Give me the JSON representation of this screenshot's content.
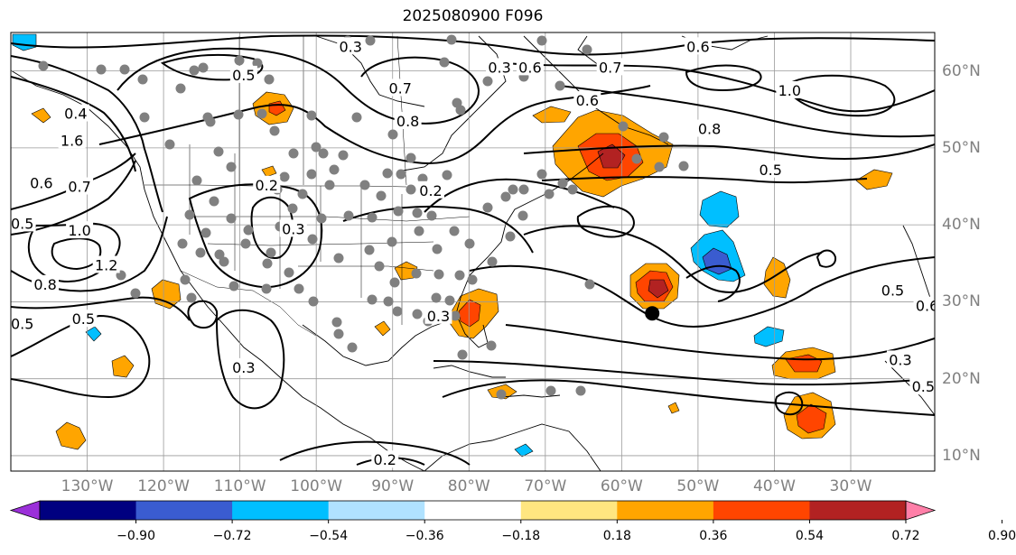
{
  "title": "2025080900 F096",
  "map": {
    "projection": "equirectangular",
    "extent": {
      "lon_min": -140,
      "lon_max": -19,
      "lat_min": 8,
      "lat_max": 65
    },
    "lon_ticks": [
      {
        "value": -130,
        "label": "130°W"
      },
      {
        "value": -120,
        "label": "120°W"
      },
      {
        "value": -110,
        "label": "110°W"
      },
      {
        "value": -100,
        "label": "100°W"
      },
      {
        "value": -90,
        "label": "90°W"
      },
      {
        "value": -80,
        "label": "80°W"
      },
      {
        "value": -70,
        "label": "70°W"
      },
      {
        "value": -60,
        "label": "60°W"
      },
      {
        "value": -50,
        "label": "50°W"
      },
      {
        "value": -40,
        "label": "40°W"
      },
      {
        "value": -30,
        "label": "30°W"
      }
    ],
    "lat_ticks": [
      {
        "value": 60,
        "label": "60°N"
      },
      {
        "value": 50,
        "label": "50°N"
      },
      {
        "value": 40,
        "label": "40°N"
      },
      {
        "value": 30,
        "label": "30°N"
      },
      {
        "value": 20,
        "label": "20°N"
      },
      {
        "value": 10,
        "label": "10°N"
      }
    ],
    "contour_labels": [
      {
        "text": "0.3",
        "lon": -95.5,
        "lat": 63.2
      },
      {
        "text": "0.5",
        "lon": -109.5,
        "lat": 59.5
      },
      {
        "text": "0.7",
        "lon": -89,
        "lat": 57.8
      },
      {
        "text": "0.8",
        "lon": -88,
        "lat": 53.5
      },
      {
        "text": "0.3",
        "lon": -76,
        "lat": 60.5
      },
      {
        "text": "0.6",
        "lon": -72,
        "lat": 60.5
      },
      {
        "text": "0.7",
        "lon": -61.5,
        "lat": 60.5
      },
      {
        "text": "0.6",
        "lon": -64.5,
        "lat": 56.2
      },
      {
        "text": "0.6",
        "lon": -50,
        "lat": 63.2
      },
      {
        "text": "1.0",
        "lon": -38,
        "lat": 57.5
      },
      {
        "text": "0.8",
        "lon": -48.5,
        "lat": 52.5
      },
      {
        "text": "0.5",
        "lon": -40.5,
        "lat": 47.2
      },
      {
        "text": "0.4",
        "lon": -131.5,
        "lat": 54.5
      },
      {
        "text": "1.6",
        "lon": -132,
        "lat": 51
      },
      {
        "text": "0.6",
        "lon": -136,
        "lat": 45.5
      },
      {
        "text": "0.7",
        "lon": -131,
        "lat": 45
      },
      {
        "text": "0.5",
        "lon": -138.5,
        "lat": 40.2
      },
      {
        "text": "1.0",
        "lon": -131,
        "lat": 39.3
      },
      {
        "text": "1.2",
        "lon": -127.5,
        "lat": 34.8
      },
      {
        "text": "0.8",
        "lon": -135.5,
        "lat": 32.3
      },
      {
        "text": "0.5",
        "lon": -138.5,
        "lat": 27.2
      },
      {
        "text": "0.5",
        "lon": -130.5,
        "lat": 27.8
      },
      {
        "text": "0.2",
        "lon": -106.5,
        "lat": 45.2
      },
      {
        "text": "0.3",
        "lon": -103,
        "lat": 39.5
      },
      {
        "text": "0.2",
        "lon": -85,
        "lat": 44.5
      },
      {
        "text": "0.3",
        "lon": -84,
        "lat": 28.2
      },
      {
        "text": "0.3",
        "lon": -109.5,
        "lat": 21.5
      },
      {
        "text": "0.2",
        "lon": -91,
        "lat": 9.5
      },
      {
        "text": "0.5",
        "lon": -24.5,
        "lat": 31.5
      },
      {
        "text": "0.6",
        "lon": -20,
        "lat": 29.5
      },
      {
        "text": "0.3",
        "lon": -23.5,
        "lat": 22.5
      },
      {
        "text": "0.5",
        "lon": -20.5,
        "lat": 19
      }
    ],
    "storm_center": {
      "lon": -56,
      "lat": 28.5
    }
  },
  "colorbar": {
    "colors": [
      "#9b30d9",
      "#000080",
      "#3a5cd0",
      "#00bfff",
      "#b0e2ff",
      "#ffffff",
      "#ffe680",
      "#ffa500",
      "#ff4500",
      "#b22222",
      "#ff7fa8"
    ],
    "ticks": [
      "−0.90",
      "−0.72",
      "−0.54",
      "−0.36",
      "−0.18",
      "0.18",
      "0.36",
      "0.54",
      "0.72",
      "0.90"
    ]
  }
}
